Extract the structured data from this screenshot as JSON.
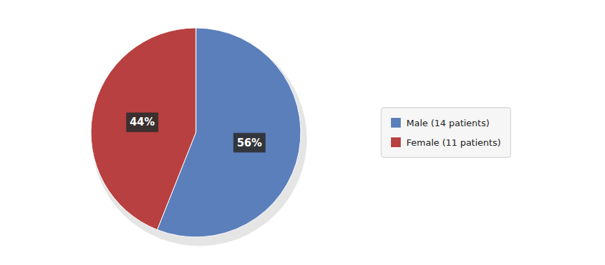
{
  "chart_data": {
    "type": "pie",
    "categories": [
      "Male (14 patients)",
      "Female (11 patients)"
    ],
    "values": [
      56,
      44
    ],
    "value_labels": [
      "56%",
      "44%"
    ],
    "colors": [
      "#5B7FBB",
      "#B94040"
    ],
    "data_labels": true,
    "legend": "right"
  }
}
